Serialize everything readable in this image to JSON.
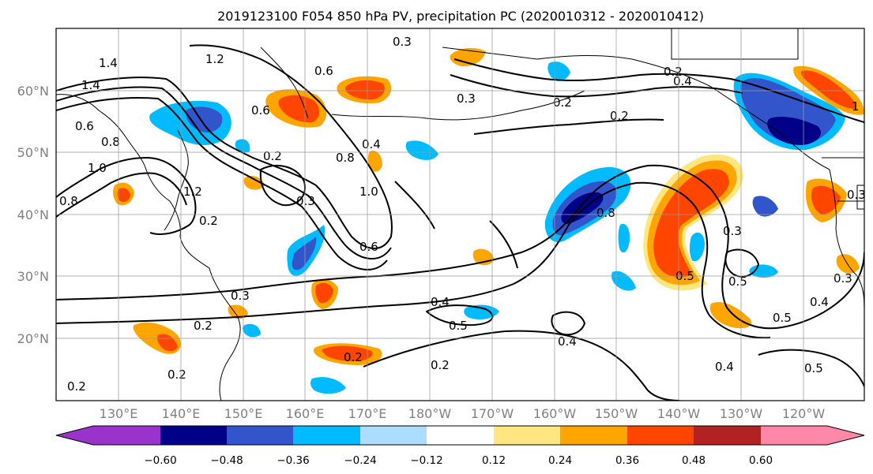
{
  "title": "2019123100 F054 850 hPa PV, precipitation PC (2020010312 - 2020010412)",
  "map": {
    "lat_labels": [
      "60°N",
      "50°N",
      "40°N",
      "30°N",
      "20°N"
    ],
    "lon_labels": [
      "130°E",
      "140°E",
      "150°E",
      "160°E",
      "170°E",
      "180°W",
      "170°W",
      "160°W",
      "150°W",
      "140°W",
      "130°W",
      "120°W"
    ],
    "contour_labels": [
      "1.2",
      "1.4",
      "1.4",
      "0.6",
      "0.8",
      "1.0",
      "0.8",
      "1.2",
      "0.6",
      "0.2",
      "0.3",
      "0.6",
      "0.8",
      "1.0",
      "0.6",
      "0.4",
      "0.3",
      "0.3",
      "0.2",
      "0.4",
      "0.2",
      "0.3",
      "0.8",
      "0.5",
      "0.5",
      "0.4",
      "0.5",
      "0.2",
      "0.2",
      "0.2",
      "0.4",
      "0.5",
      "0.4",
      "0.5",
      "0.2",
      "0.4",
      "1",
      "0.3",
      "0.3",
      "0.2",
      "0.3",
      "0.2",
      "0.2"
    ],
    "shading_colors": {
      "neg_060": "#9933cc",
      "neg_048": "#000088",
      "neg_036": "#3355cc",
      "neg_024": "#00bbff",
      "neg_012": "#aaddff",
      "zero": "#ffffff",
      "pos_012": "#ffe680",
      "pos_024": "#ffa500",
      "pos_036": "#ff4500",
      "pos_048": "#b22222",
      "pos_060": "#ff88aa"
    }
  },
  "colorbar": {
    "ticks": [
      "−0.60",
      "−0.48",
      "−0.36",
      "−0.24",
      "−0.12",
      "0.12",
      "0.24",
      "0.36",
      "0.48",
      "0.60"
    ],
    "colors": [
      "#9933cc",
      "#000088",
      "#3355cc",
      "#00bbff",
      "#aaddff",
      "#ffffff",
      "#ffe680",
      "#ffa500",
      "#ff4500",
      "#b22222",
      "#ff88aa"
    ]
  }
}
